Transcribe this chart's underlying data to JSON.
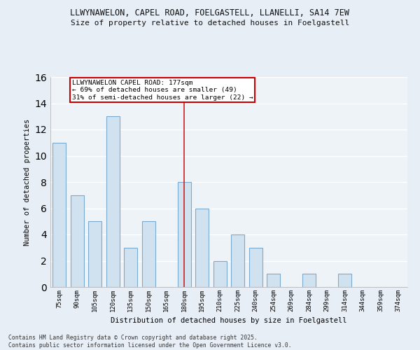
{
  "title_line1": "LLWYNAWELON, CAPEL ROAD, FOELGASTELL, LLANELLI, SA14 7EW",
  "title_line2": "Size of property relative to detached houses in Foelgastell",
  "xlabel": "Distribution of detached houses by size in Foelgastell",
  "ylabel": "Number of detached properties",
  "categories": [
    "75sqm",
    "90sqm",
    "105sqm",
    "120sqm",
    "135sqm",
    "150sqm",
    "165sqm",
    "180sqm",
    "195sqm",
    "210sqm",
    "225sqm",
    "240sqm",
    "254sqm",
    "269sqm",
    "284sqm",
    "299sqm",
    "314sqm",
    "344sqm",
    "359sqm",
    "374sqm"
  ],
  "values": [
    11,
    7,
    5,
    13,
    3,
    5,
    0,
    8,
    6,
    2,
    4,
    3,
    1,
    0,
    1,
    0,
    1,
    0,
    0,
    0
  ],
  "bar_color": "#d0e2f0",
  "bar_edge_color": "#7aaad0",
  "vline_index": 7,
  "vline_color": "#cc2222",
  "annotation_text": "LLWYNAWELON CAPEL ROAD: 177sqm\n← 69% of detached houses are smaller (49)\n31% of semi-detached houses are larger (22) →",
  "annotation_box_facecolor": "#ffffff",
  "annotation_box_edgecolor": "#cc0000",
  "ylim": [
    0,
    16
  ],
  "yticks": [
    0,
    2,
    4,
    6,
    8,
    10,
    12,
    14,
    16
  ],
  "background_color": "#e8eef6",
  "plot_bg_color": "#eef3f8",
  "grid_color": "#ffffff",
  "footnote": "Contains HM Land Registry data © Crown copyright and database right 2025.\nContains public sector information licensed under the Open Government Licence v3.0."
}
